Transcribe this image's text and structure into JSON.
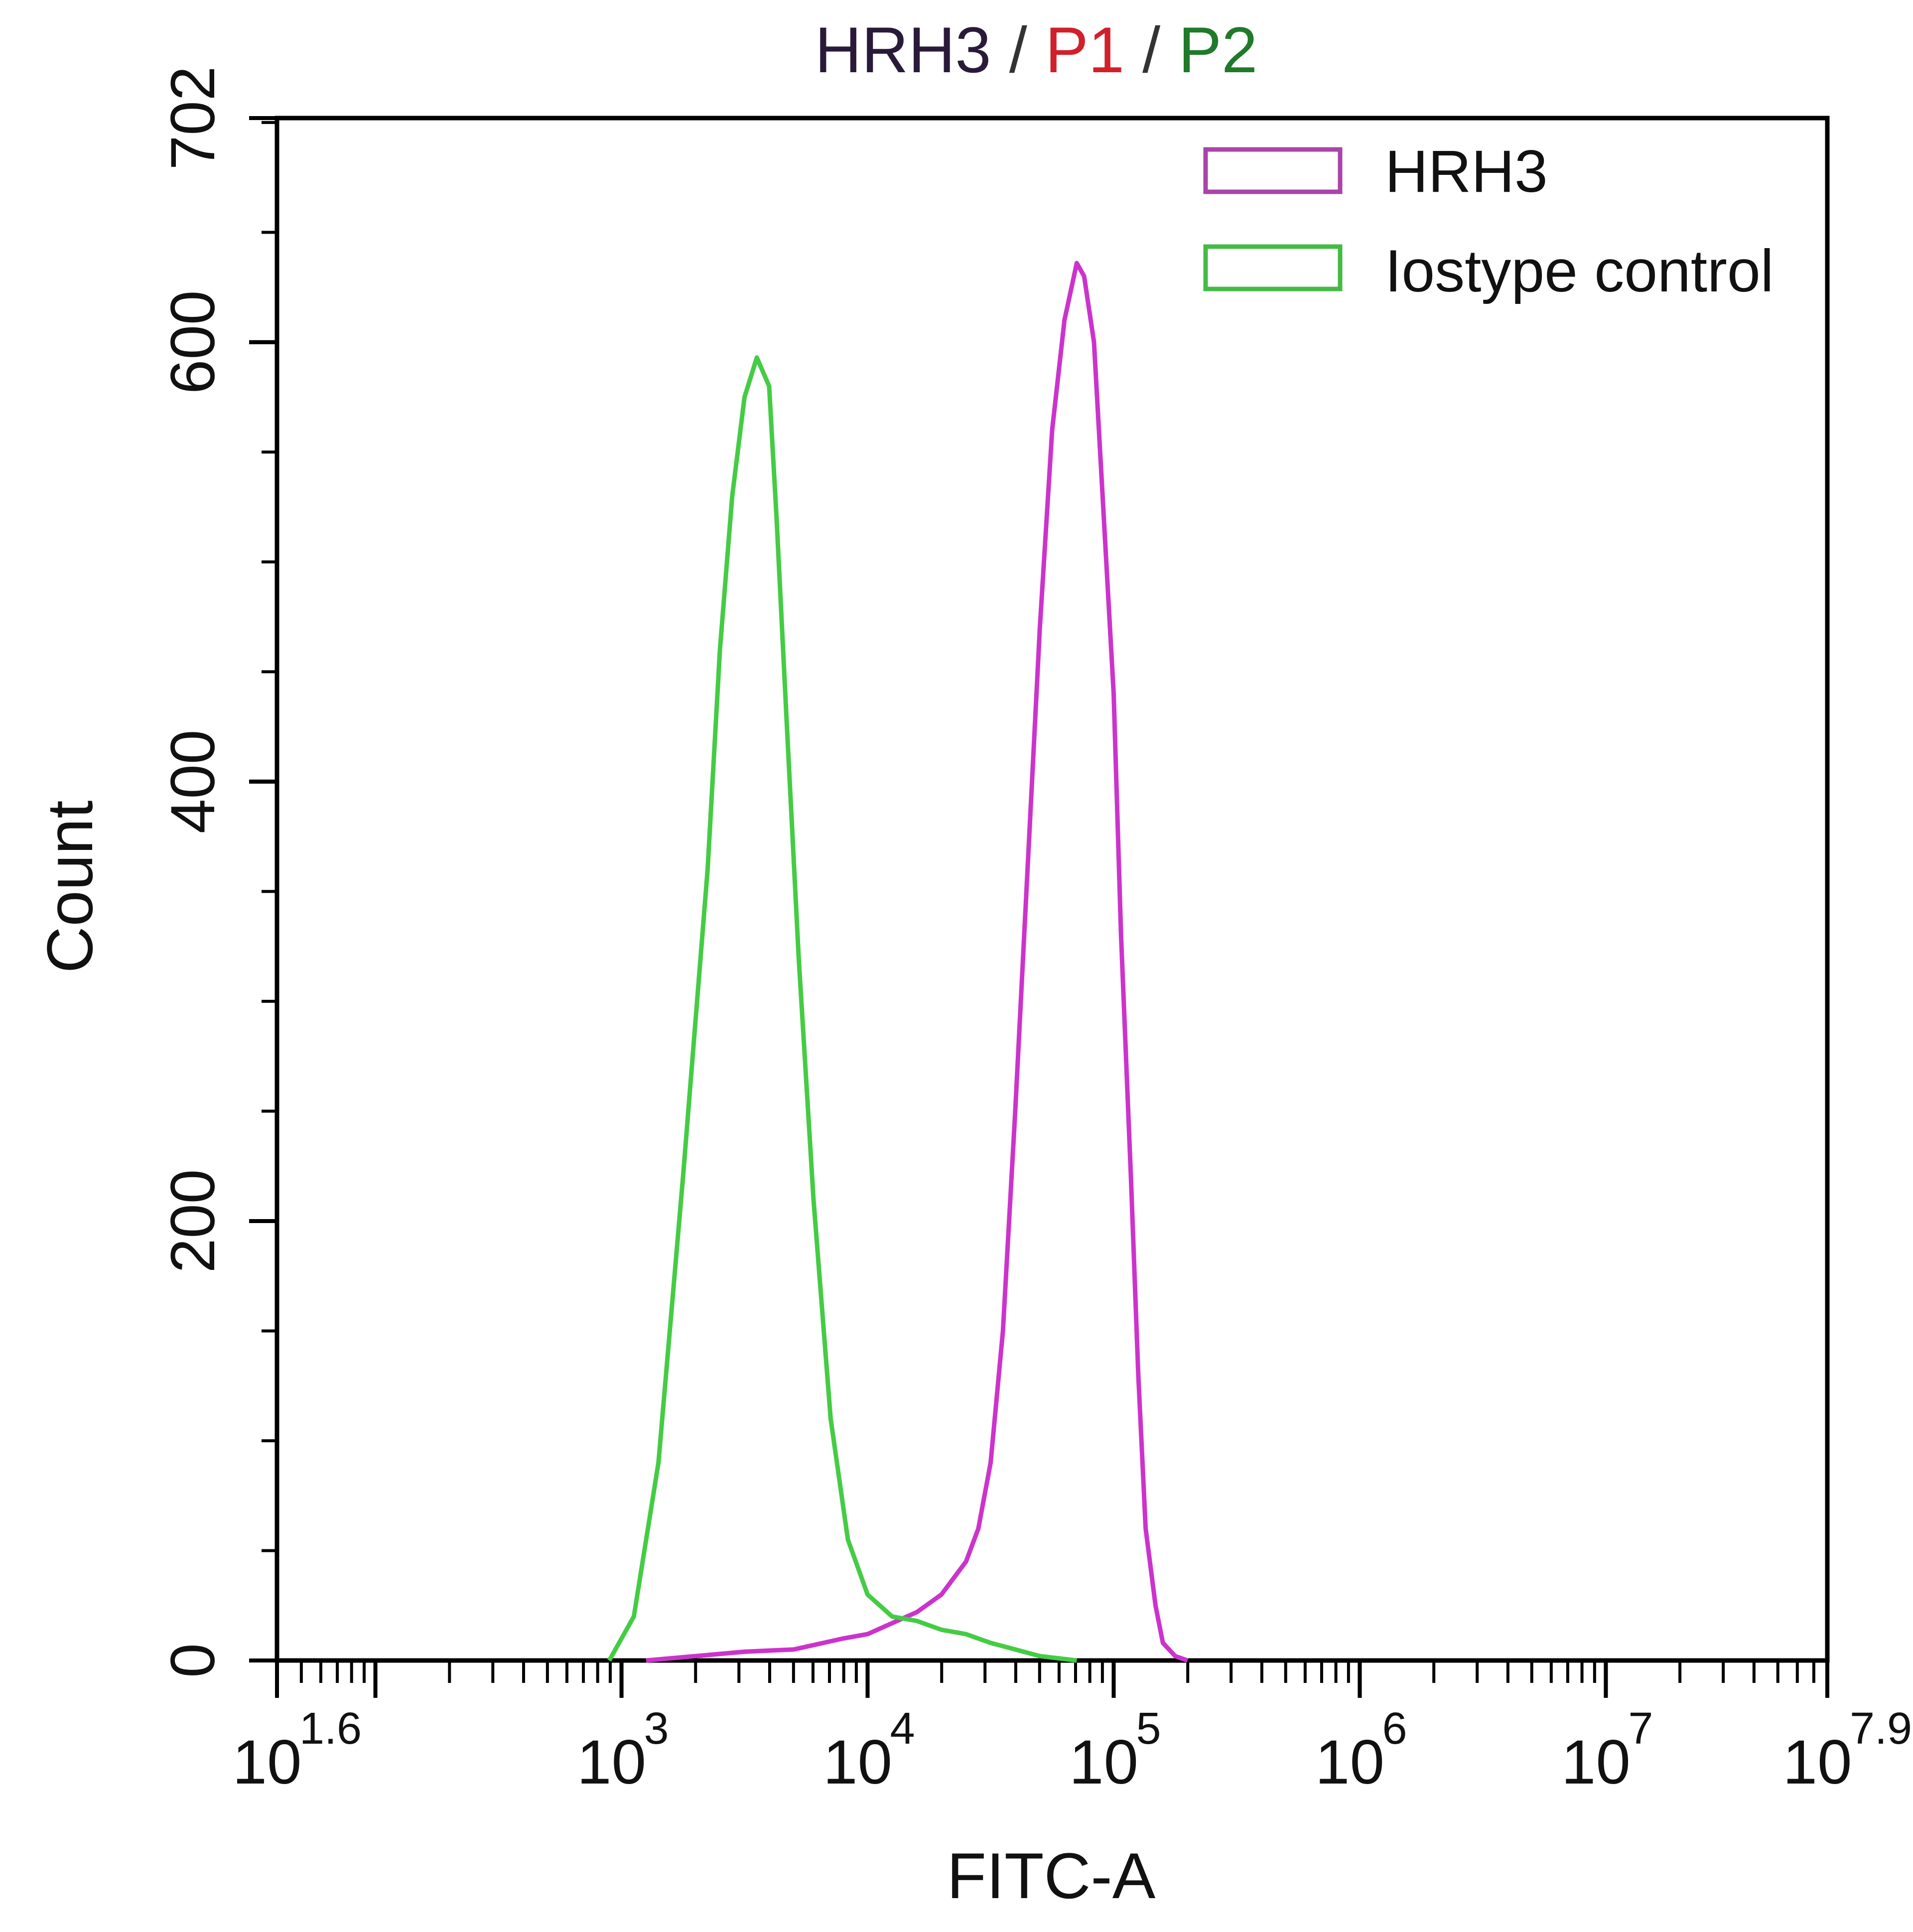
{
  "chart_data": {
    "type": "line",
    "title_parts": [
      {
        "text": "HRH3",
        "color": "#2a1a3a"
      },
      {
        "text": " / ",
        "color": "#333333"
      },
      {
        "text": "P1",
        "color": "#d0202a"
      },
      {
        "text": " / ",
        "color": "#333333"
      },
      {
        "text": "P2",
        "color": "#1f7a2a"
      }
    ],
    "title": "HRH3 / P1 / P2",
    "xlabel": "FITC-A",
    "ylabel": "Count",
    "xscale": "log10",
    "xlim_log10": [
      1.6,
      7.9
    ],
    "ylim": [
      0,
      702
    ],
    "x_ticks": [
      {
        "base": "10",
        "exp": "1.6",
        "log": 1.6
      },
      {
        "base": "10",
        "exp": "3",
        "log": 3
      },
      {
        "base": "10",
        "exp": "4",
        "log": 4
      },
      {
        "base": "10",
        "exp": "5",
        "log": 5
      },
      {
        "base": "10",
        "exp": "6",
        "log": 6
      },
      {
        "base": "10",
        "exp": "7",
        "log": 7
      },
      {
        "base": "10",
        "exp": "7.9",
        "log": 7.9
      }
    ],
    "y_ticks": [
      0,
      200,
      400,
      600,
      702
    ],
    "y_minor_step": 50,
    "grid": false,
    "legend_position": "top-right",
    "series": [
      {
        "name": "HRH3",
        "color": "#cc33cc",
        "x_log10": [
          3.1,
          3.3,
          3.5,
          3.7,
          3.9,
          4.0,
          4.1,
          4.2,
          4.3,
          4.4,
          4.45,
          4.5,
          4.55,
          4.6,
          4.65,
          4.7,
          4.75,
          4.8,
          4.85,
          4.88,
          4.92,
          4.95,
          5.0,
          5.03,
          5.07,
          5.1,
          5.13,
          5.17,
          5.2,
          5.25,
          5.3
        ],
        "values": [
          0,
          2,
          4,
          5,
          10,
          12,
          17,
          22,
          30,
          45,
          60,
          90,
          150,
          250,
          360,
          470,
          560,
          610,
          636,
          630,
          600,
          540,
          440,
          330,
          220,
          130,
          60,
          25,
          8,
          2,
          0
        ]
      },
      {
        "name": "Iostype control",
        "color": "#44cc44",
        "x_log10": [
          2.95,
          3.05,
          3.15,
          3.25,
          3.35,
          3.4,
          3.45,
          3.5,
          3.55,
          3.6,
          3.63,
          3.67,
          3.72,
          3.78,
          3.85,
          3.92,
          4.0,
          4.1,
          4.2,
          4.3,
          4.4,
          4.5,
          4.6,
          4.7,
          4.85
        ],
        "values": [
          0,
          20,
          90,
          220,
          360,
          460,
          530,
          575,
          593,
          580,
          520,
          430,
          320,
          210,
          110,
          55,
          30,
          20,
          18,
          14,
          12,
          8,
          5,
          2,
          0
        ]
      }
    ]
  },
  "legend": {
    "items": [
      {
        "label": "HRH3",
        "color": "#aa44aa"
      },
      {
        "label": "Iostype control",
        "color": "#44bb44"
      }
    ]
  },
  "axes": {
    "x_title": "FITC-A",
    "y_title": "Count"
  }
}
